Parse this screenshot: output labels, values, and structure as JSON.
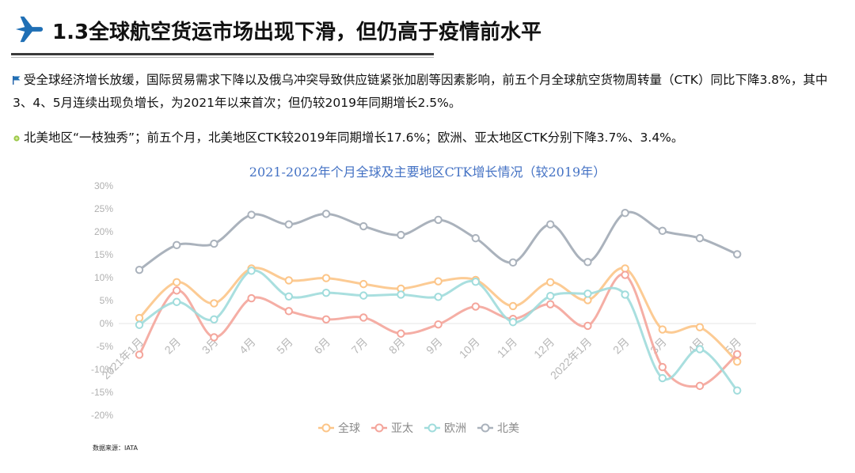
{
  "header": {
    "title": "1.3全球航空货运市场出现下滑，但仍高于疫情前水平"
  },
  "bullets": [
    {
      "icon": "flag-icon",
      "text": "受全球经济增长放缓，国际贸易需求下降以及俄乌冲突导致供应链紧张加剧等因素影响，前五个月全球航空货物周转量（CTK）同比下降3.8%，其中3、4、5月连续出现负增长，为2021年以来首次；但仍较2019年同期增长2.5%。"
    },
    {
      "icon": "sprout-icon",
      "text": "北美地区“一枝独秀”；前五个月，北美地区CTK较2019年同期增长17.6%；欧洲、亚太地区CTK分别下降3.7%、3.4%。"
    }
  ],
  "chart_data": {
    "type": "line",
    "title": "2021-2022年个月全球及主要地区CTK增长情况（较2019年）",
    "categories": [
      "2021年1月",
      "2月",
      "3月",
      "4月",
      "5月",
      "6月",
      "7月",
      "8月",
      "9月",
      "10月",
      "11月",
      "12月",
      "2022年1月",
      "2月",
      "3月",
      "4月",
      "5月"
    ],
    "series": [
      {
        "name": "全球",
        "color": "#fcc588",
        "values": [
          1.2,
          9.0,
          4.4,
          12.0,
          9.4,
          9.9,
          8.6,
          7.6,
          9.2,
          9.5,
          3.8,
          9.0,
          5.1,
          12.0,
          -1.3,
          -0.8,
          -8.3
        ]
      },
      {
        "name": "亚太",
        "color": "#f4a59b",
        "values": [
          -6.8,
          7.2,
          -3.0,
          5.5,
          2.7,
          0.9,
          1.3,
          -2.2,
          -0.2,
          3.7,
          1.0,
          4.2,
          -0.5,
          10.6,
          -9.5,
          -13.6,
          -6.7
        ]
      },
      {
        "name": "欧洲",
        "color": "#a0dcdc",
        "values": [
          -0.3,
          4.7,
          0.9,
          11.5,
          5.9,
          6.7,
          6.1,
          6.3,
          5.8,
          9.1,
          0.3,
          6.0,
          6.5,
          6.3,
          -11.9,
          -5.6,
          -14.6
        ]
      },
      {
        "name": "北美",
        "color": "#aab2bc",
        "values": [
          11.7,
          17.1,
          17.4,
          23.7,
          21.6,
          23.9,
          21.2,
          19.3,
          22.6,
          18.6,
          13.3,
          21.6,
          13.4,
          24.1,
          20.2,
          18.6,
          15.1
        ]
      }
    ],
    "yticks": [
      "30%",
      "25%",
      "20%",
      "15%",
      "10%",
      "5%",
      "0%",
      "-5%",
      "-10%",
      "-15%",
      "-20%"
    ],
    "ylim": [
      -20,
      30
    ],
    "legend_position": "bottom",
    "grid": false
  },
  "source_note": "数据来源：IATA"
}
